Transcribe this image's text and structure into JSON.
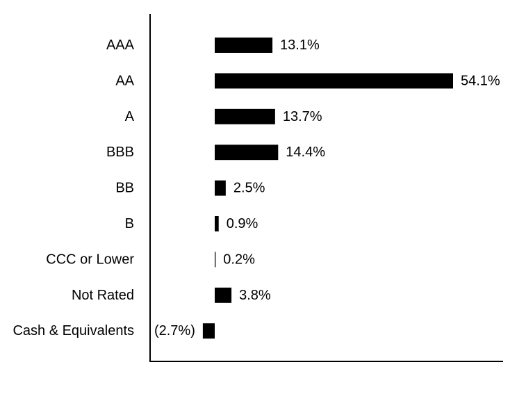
{
  "chart_data": {
    "type": "bar",
    "orientation": "horizontal",
    "categories": [
      "AAA",
      "AA",
      "A",
      "BBB",
      "BB",
      "B",
      "CCC or Lower",
      "Not Rated",
      "Cash & Equivalents"
    ],
    "values": [
      13.1,
      54.1,
      13.7,
      14.4,
      2.5,
      0.9,
      0.2,
      3.8,
      -2.7
    ],
    "value_labels": [
      "13.1%",
      "54.1%",
      "13.7%",
      "14.4%",
      "2.5%",
      "0.9%",
      "0.2%",
      "3.8%",
      "(2.7%)"
    ],
    "title": "",
    "xlabel": "",
    "ylabel": "",
    "xlim": [
      -14.5,
      65.6
    ],
    "grid": false,
    "bar_color": "#000000",
    "axis_color": "#000000"
  }
}
